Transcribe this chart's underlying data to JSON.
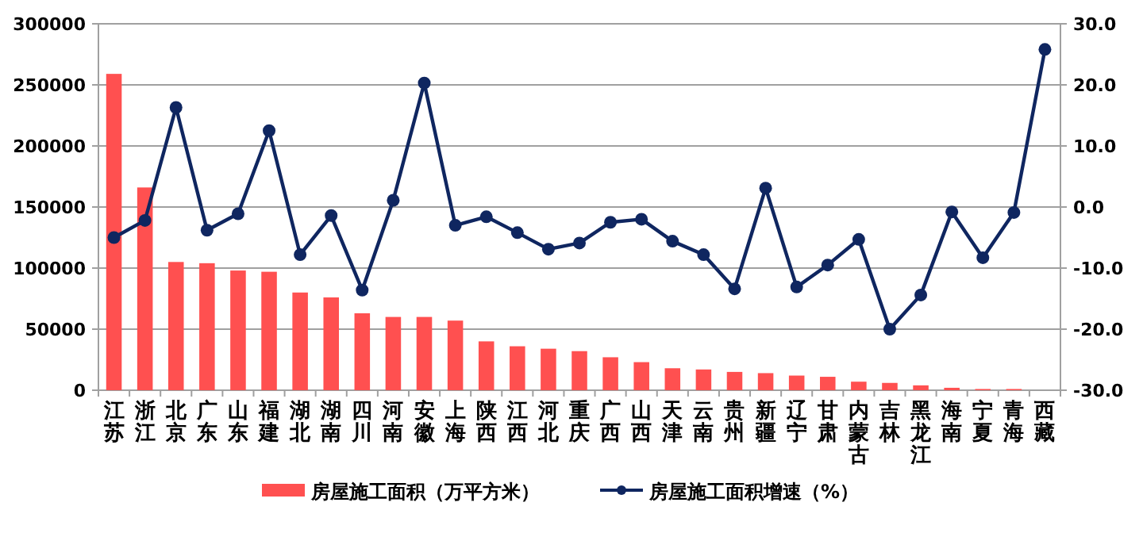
{
  "chart_data": {
    "type": "bar",
    "categories": [
      "江苏",
      "浙江",
      "北京",
      "广东",
      "山东",
      "福建",
      "湖北",
      "湖南",
      "四川",
      "河南",
      "安徽",
      "上海",
      "陕西",
      "江西",
      "河北",
      "重庆",
      "广西",
      "山西",
      "天津",
      "云南",
      "贵州",
      "新疆",
      "辽宁",
      "甘肃",
      "内蒙古",
      "吉林",
      "黑龙江",
      "海南",
      "宁夏",
      "青海",
      "西藏"
    ],
    "series": [
      {
        "name": "房屋施工面积（万平方米）",
        "color": "#ff5050",
        "values": [
          259000,
          166000,
          105000,
          104000,
          98000,
          97000,
          80000,
          76000,
          63000,
          60000,
          60000,
          57000,
          40000,
          36000,
          34000,
          32000,
          27000,
          23000,
          18000,
          17000,
          15000,
          14000,
          12000,
          11000,
          7000,
          6000,
          4000,
          2000,
          1000,
          1000,
          0
        ]
      },
      {
        "name": "房屋施工面积增速（%）",
        "type": "line",
        "axis": "y2",
        "color": "#0f2660",
        "marker": "circle",
        "values": [
          -5.0,
          -2.2,
          16.3,
          -3.8,
          -1.1,
          12.5,
          -7.8,
          -1.4,
          -13.6,
          1.1,
          20.3,
          -3.0,
          -1.6,
          -4.2,
          -6.9,
          -5.9,
          -2.5,
          -2.0,
          -5.6,
          -7.8,
          -13.4,
          3.1,
          -13.1,
          -9.5,
          -5.3,
          -20.0,
          -14.4,
          -0.8,
          -8.3,
          -0.9,
          25.8
        ]
      }
    ],
    "ylim": [
      0,
      300000
    ],
    "yticks": [
      0,
      50000,
      100000,
      150000,
      200000,
      250000,
      300000
    ],
    "y2lim": [
      -30,
      30
    ],
    "y2ticks": [
      {
        "value": -30,
        "label": "-30.0"
      },
      {
        "value": -20,
        "label": "-20.0"
      },
      {
        "value": -10,
        "label": "-10.0"
      },
      {
        "value": 0,
        "label": "0.0"
      },
      {
        "value": 10,
        "label": "10.0"
      },
      {
        "value": 20,
        "label": "20.0"
      },
      {
        "value": 30,
        "label": "30.0"
      }
    ],
    "grid": "y",
    "legend": "bottom"
  }
}
